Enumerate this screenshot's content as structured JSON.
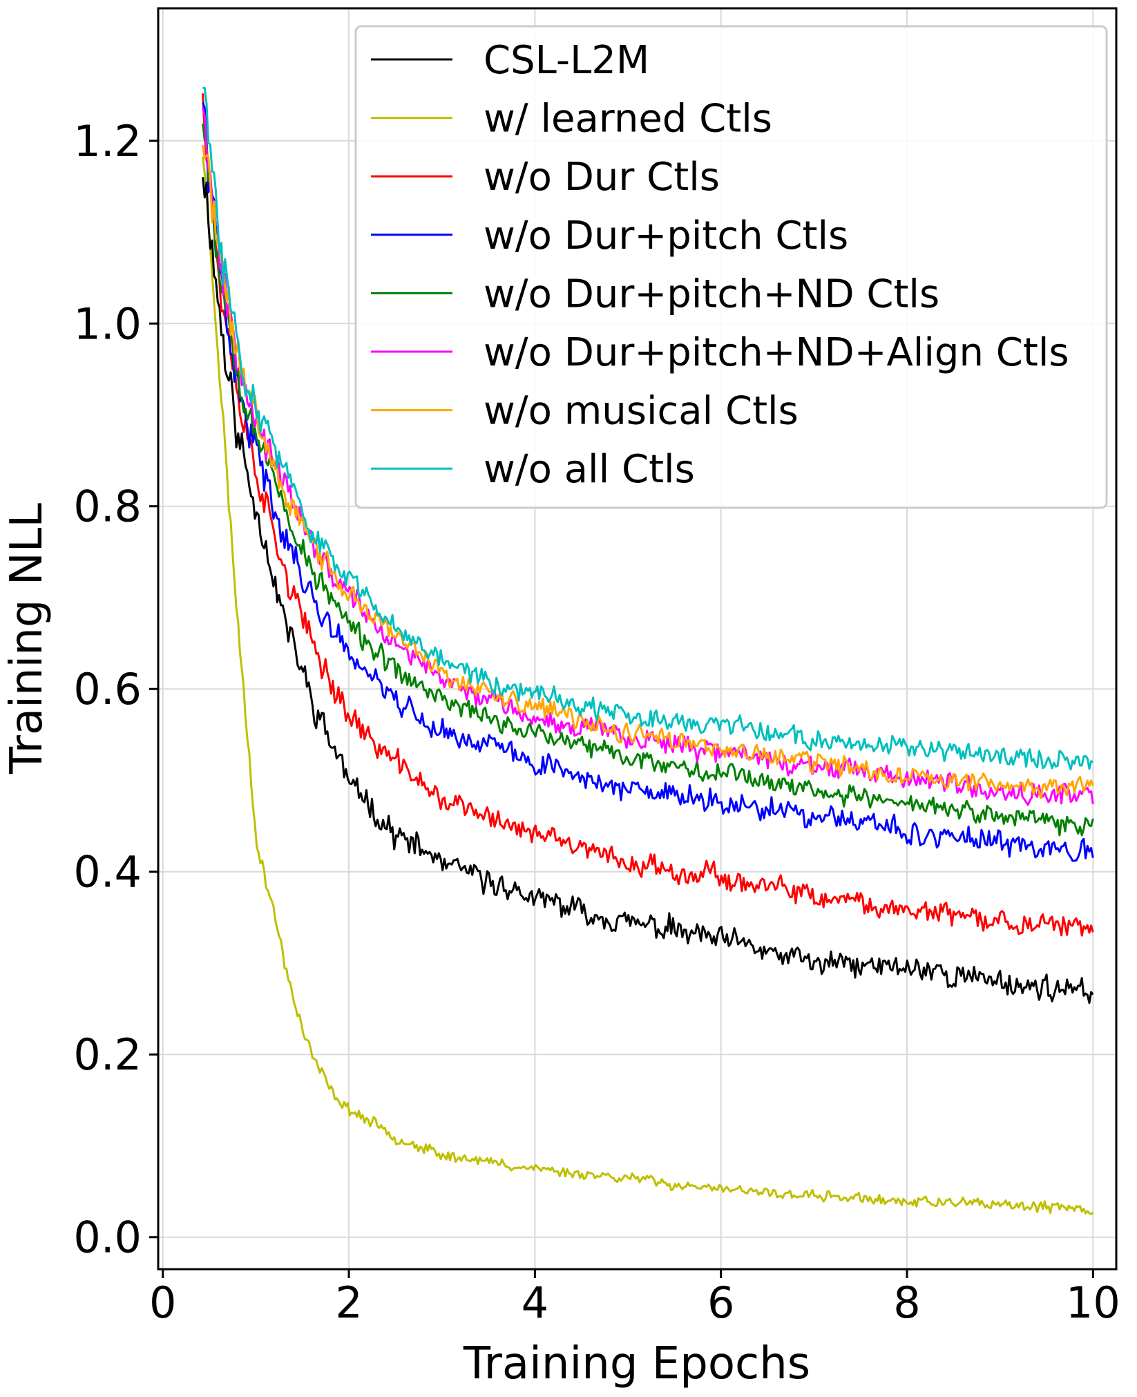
{
  "chart_data": {
    "type": "line",
    "title": "",
    "xlabel": "Training Epochs",
    "ylabel": "Training NLL",
    "xlim": [
      -0.05,
      10.25
    ],
    "ylim": [
      -0.035,
      1.345
    ],
    "xticks": [
      0,
      2,
      4,
      6,
      8,
      10
    ],
    "yticks": [
      0.0,
      0.2,
      0.4,
      0.6,
      0.8,
      1.0,
      1.2
    ],
    "xtick_labels": [
      "0",
      "2",
      "4",
      "6",
      "8",
      "10"
    ],
    "ytick_labels": [
      "0.0",
      "0.2",
      "0.4",
      "0.6",
      "0.8",
      "1.0",
      "1.2"
    ],
    "grid": true,
    "legend_position": "top-right",
    "x_start": 0.43,
    "x_end": 10.0,
    "n_points": 480,
    "series": [
      {
        "name": "CSL-L2M",
        "color": "#000000",
        "noise": 0.014,
        "seed": 11,
        "anchors": [
          [
            0.43,
            1.18
          ],
          [
            0.6,
            1.02
          ],
          [
            0.8,
            0.88
          ],
          [
            1.0,
            0.8
          ],
          [
            1.3,
            0.68
          ],
          [
            1.6,
            0.59
          ],
          [
            2.0,
            0.5
          ],
          [
            2.5,
            0.44
          ],
          [
            3.0,
            0.41
          ],
          [
            3.5,
            0.39
          ],
          [
            4.0,
            0.37
          ],
          [
            5.0,
            0.345
          ],
          [
            6.0,
            0.325
          ],
          [
            7.0,
            0.3
          ],
          [
            8.0,
            0.295
          ],
          [
            9.0,
            0.28
          ],
          [
            10.0,
            0.265
          ]
        ]
      },
      {
        "name": "w/ learned Ctls",
        "color": "#bfbf00",
        "noise": 0.006,
        "seed": 23,
        "anchors": [
          [
            0.43,
            1.19
          ],
          [
            0.6,
            0.96
          ],
          [
            0.8,
            0.68
          ],
          [
            1.0,
            0.44
          ],
          [
            1.2,
            0.35
          ],
          [
            1.4,
            0.26
          ],
          [
            1.6,
            0.2
          ],
          [
            1.8,
            0.16
          ],
          [
            2.0,
            0.14
          ],
          [
            2.5,
            0.11
          ],
          [
            3.0,
            0.09
          ],
          [
            4.0,
            0.075
          ],
          [
            5.0,
            0.065
          ],
          [
            6.0,
            0.052
          ],
          [
            7.0,
            0.045
          ],
          [
            8.0,
            0.04
          ],
          [
            9.0,
            0.035
          ],
          [
            10.0,
            0.03
          ]
        ]
      },
      {
        "name": "w/o Dur Ctls",
        "color": "#ff0000",
        "noise": 0.013,
        "seed": 37,
        "anchors": [
          [
            0.43,
            1.26
          ],
          [
            0.6,
            1.05
          ],
          [
            0.8,
            0.92
          ],
          [
            1.0,
            0.84
          ],
          [
            1.3,
            0.73
          ],
          [
            1.6,
            0.65
          ],
          [
            2.0,
            0.57
          ],
          [
            2.5,
            0.52
          ],
          [
            3.0,
            0.48
          ],
          [
            3.5,
            0.46
          ],
          [
            4.0,
            0.44
          ],
          [
            5.0,
            0.41
          ],
          [
            6.0,
            0.395
          ],
          [
            7.0,
            0.37
          ],
          [
            8.0,
            0.36
          ],
          [
            9.0,
            0.345
          ],
          [
            10.0,
            0.335
          ]
        ]
      },
      {
        "name": "w/o Dur+pitch Ctls",
        "color": "#0000ff",
        "noise": 0.013,
        "seed": 41,
        "anchors": [
          [
            0.43,
            1.24
          ],
          [
            0.6,
            1.06
          ],
          [
            0.8,
            0.93
          ],
          [
            1.0,
            0.86
          ],
          [
            1.3,
            0.77
          ],
          [
            1.6,
            0.7
          ],
          [
            2.0,
            0.64
          ],
          [
            2.5,
            0.59
          ],
          [
            3.0,
            0.55
          ],
          [
            3.5,
            0.54
          ],
          [
            4.0,
            0.52
          ],
          [
            5.0,
            0.49
          ],
          [
            6.0,
            0.475
          ],
          [
            7.0,
            0.46
          ],
          [
            8.0,
            0.445
          ],
          [
            9.0,
            0.43
          ],
          [
            10.0,
            0.425
          ]
        ]
      },
      {
        "name": "w/o Dur+pitch+ND Ctls",
        "color": "#008000",
        "noise": 0.012,
        "seed": 53,
        "anchors": [
          [
            0.43,
            1.24
          ],
          [
            0.6,
            1.07
          ],
          [
            0.8,
            0.95
          ],
          [
            1.0,
            0.88
          ],
          [
            1.3,
            0.8
          ],
          [
            1.6,
            0.73
          ],
          [
            2.0,
            0.67
          ],
          [
            2.5,
            0.62
          ],
          [
            3.0,
            0.59
          ],
          [
            3.5,
            0.57
          ],
          [
            4.0,
            0.55
          ],
          [
            5.0,
            0.525
          ],
          [
            6.0,
            0.51
          ],
          [
            7.0,
            0.49
          ],
          [
            8.0,
            0.475
          ],
          [
            9.0,
            0.46
          ],
          [
            10.0,
            0.45
          ]
        ]
      },
      {
        "name": "w/o Dur+pitch+ND+Align Ctls",
        "color": "#ff00ff",
        "noise": 0.012,
        "seed": 67,
        "anchors": [
          [
            0.43,
            1.25
          ],
          [
            0.6,
            1.08
          ],
          [
            0.8,
            0.97
          ],
          [
            1.0,
            0.9
          ],
          [
            1.3,
            0.82
          ],
          [
            1.6,
            0.76
          ],
          [
            2.0,
            0.7
          ],
          [
            2.5,
            0.65
          ],
          [
            3.0,
            0.61
          ],
          [
            3.5,
            0.59
          ],
          [
            4.0,
            0.57
          ],
          [
            5.0,
            0.55
          ],
          [
            6.0,
            0.53
          ],
          [
            7.0,
            0.515
          ],
          [
            8.0,
            0.5
          ],
          [
            9.0,
            0.49
          ],
          [
            10.0,
            0.485
          ]
        ]
      },
      {
        "name": "w/o musical Ctls",
        "color": "#ffa500",
        "noise": 0.012,
        "seed": 71,
        "anchors": [
          [
            0.43,
            1.2
          ],
          [
            0.6,
            1.08
          ],
          [
            0.8,
            0.97
          ],
          [
            1.0,
            0.9
          ],
          [
            1.3,
            0.82
          ],
          [
            1.6,
            0.76
          ],
          [
            2.0,
            0.7
          ],
          [
            2.5,
            0.66
          ],
          [
            3.0,
            0.62
          ],
          [
            3.5,
            0.595
          ],
          [
            4.0,
            0.58
          ],
          [
            5.0,
            0.55
          ],
          [
            6.0,
            0.535
          ],
          [
            7.0,
            0.52
          ],
          [
            8.0,
            0.505
          ],
          [
            9.0,
            0.495
          ],
          [
            10.0,
            0.49
          ]
        ]
      },
      {
        "name": "w/o all Ctls",
        "color": "#00bfbf",
        "noise": 0.012,
        "seed": 83,
        "anchors": [
          [
            0.43,
            1.26
          ],
          [
            0.6,
            1.1
          ],
          [
            0.8,
            0.98
          ],
          [
            1.0,
            0.91
          ],
          [
            1.3,
            0.84
          ],
          [
            1.6,
            0.77
          ],
          [
            2.0,
            0.72
          ],
          [
            2.5,
            0.67
          ],
          [
            3.0,
            0.635
          ],
          [
            3.5,
            0.61
          ],
          [
            4.0,
            0.595
          ],
          [
            5.0,
            0.57
          ],
          [
            6.0,
            0.56
          ],
          [
            7.0,
            0.545
          ],
          [
            8.0,
            0.535
          ],
          [
            9.0,
            0.525
          ],
          [
            10.0,
            0.52
          ]
        ]
      }
    ]
  }
}
